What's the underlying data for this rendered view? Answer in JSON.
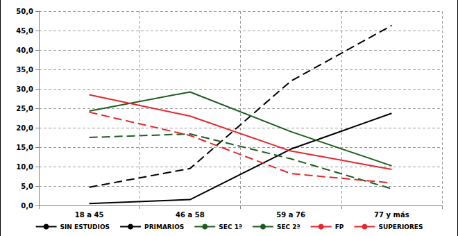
{
  "chart_data": {
    "type": "line",
    "categories": [
      "18 a 45",
      "46 a 58",
      "59 a 76",
      "77 y más"
    ],
    "series": [
      {
        "name": "SIN ESTUDIOS",
        "color": "#000000",
        "line_style": "solid",
        "values": [
          0.5,
          1.5,
          14.5,
          23.7
        ]
      },
      {
        "name": "PRIMARIOS",
        "color": "#000000",
        "line_style": "dashed",
        "values": [
          4.7,
          9.5,
          32.0,
          46.3
        ]
      },
      {
        "name": "SEC 1ª",
        "color": "#1e5c1e",
        "line_style": "solid",
        "values": [
          24.3,
          29.2,
          19.0,
          10.2
        ]
      },
      {
        "name": "SEC 2ª",
        "color": "#1e5c1e",
        "line_style": "dashed",
        "values": [
          17.5,
          18.4,
          12.0,
          4.3
        ]
      },
      {
        "name": "FP",
        "color": "#e8262b",
        "line_style": "dashed",
        "values": [
          24.0,
          18.0,
          8.2,
          5.8
        ]
      },
      {
        "name": "SUPERIORES",
        "color": "#e8262b",
        "line_style": "solid",
        "values": [
          28.5,
          23.0,
          14.0,
          9.3
        ]
      }
    ],
    "ylim": [
      0,
      50
    ],
    "yticks": [
      {
        "value": 0,
        "label": "0,0"
      },
      {
        "value": 5,
        "label": "5,0"
      },
      {
        "value": 10,
        "label": "10,0"
      },
      {
        "value": 15,
        "label": "15,0"
      },
      {
        "value": 20,
        "label": "20,0"
      },
      {
        "value": 25,
        "label": "25,0"
      },
      {
        "value": 30,
        "label": "30,0"
      },
      {
        "value": 35,
        "label": "35,0"
      },
      {
        "value": 40,
        "label": "40,0"
      },
      {
        "value": 45,
        "label": "45,0"
      },
      {
        "value": 50,
        "label": "50,0"
      }
    ],
    "grid": true,
    "legend": "bottom",
    "marker": "none"
  }
}
